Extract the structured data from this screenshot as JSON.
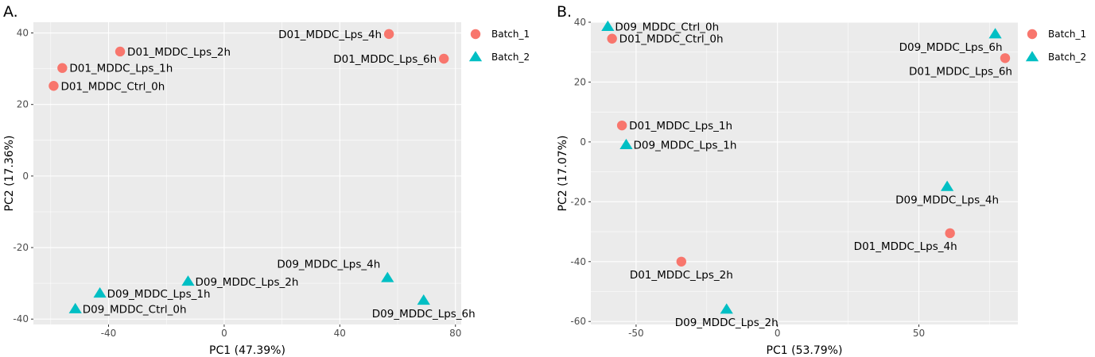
{
  "colors": {
    "batch_1": "#F8766D",
    "batch_2": "#00BFC4",
    "panel_bg": "#EBEBEB",
    "grid": "#FFFFFF"
  },
  "chart_data": [
    {
      "type": "scatter",
      "panel_label": "A.",
      "xlabel": "PC1 (47.39%)",
      "ylabel": "PC2 (17.36%)",
      "xlim": [
        -66,
        82
      ],
      "ylim": [
        -41.5,
        43
      ],
      "xticks": [
        -40,
        0,
        40,
        80
      ],
      "yticks": [
        -40,
        -20,
        0,
        20,
        40
      ],
      "xtick_labels": [
        "-40",
        "0",
        "40",
        "80"
      ],
      "ytick_labels": [
        "-40",
        "-20",
        "0",
        "20",
        "40"
      ],
      "legend": [
        "Batch_1",
        "Batch_2"
      ],
      "legend_position": "right",
      "grid": true,
      "series": [
        {
          "name": "Batch_1",
          "marker": "circle",
          "points": [
            {
              "label": "D01_MDDC_Lps_4h",
              "x": 57,
              "y": 39.7,
              "label_pos": "left"
            },
            {
              "label": "D01_MDDC_Lps_2h",
              "x": -36,
              "y": 34.8,
              "label_pos": "right"
            },
            {
              "label": "D01_MDDC_Lps_6h",
              "x": 76,
              "y": 32.8,
              "label_pos": "left"
            },
            {
              "label": "D01_MDDC_Lps_1h",
              "x": -56,
              "y": 30.2,
              "label_pos": "right"
            },
            {
              "label": "D01_MDDC_Ctrl_0h",
              "x": -59,
              "y": 25.2,
              "label_pos": "right"
            }
          ]
        },
        {
          "name": "Batch_2",
          "marker": "triangle",
          "points": [
            {
              "label": "D09_MDDC_Lps_4h",
              "x": 56.5,
              "y": -28.5,
              "label_pos": "above"
            },
            {
              "label": "D09_MDDC_Lps_2h",
              "x": -12.5,
              "y": -29.5,
              "label_pos": "right"
            },
            {
              "label": "D09_MDDC_Lps_1h",
              "x": -43,
              "y": -32.8,
              "label_pos": "right"
            },
            {
              "label": "D09_MDDC_Lps_6h",
              "x": 69,
              "y": -34.8,
              "label_pos": "below"
            },
            {
              "label": "D09_MDDC_Ctrl_0h",
              "x": -51.5,
              "y": -37.2,
              "label_pos": "right"
            }
          ]
        }
      ]
    },
    {
      "type": "scatter",
      "panel_label": "B.",
      "xlabel": "PC1 (53.79%)",
      "ylabel": "PC2 (17.07%)",
      "xlim": [
        -66,
        85
      ],
      "ylim": [
        -61,
        40
      ],
      "xticks": [
        -50,
        0,
        50
      ],
      "yticks": [
        -60,
        -40,
        -20,
        0,
        20,
        40
      ],
      "xtick_labels": [
        "-50",
        "0",
        "50"
      ],
      "ytick_labels": [
        "-60",
        "-40",
        "-20",
        "0",
        "20",
        "40"
      ],
      "legend": [
        "Batch_1",
        "Batch_2"
      ],
      "legend_position": "right",
      "grid": true,
      "series": [
        {
          "name": "Batch_1",
          "marker": "circle",
          "points": [
            {
              "label": "D01_MDDC_Ctrl_0h",
              "x": -58.5,
              "y": 34.5,
              "label_pos": "right"
            },
            {
              "label": "D01_MDDC_Lps_6h",
              "x": 80.5,
              "y": 28,
              "label_pos": "below-left"
            },
            {
              "label": "D01_MDDC_Lps_1h",
              "x": -55,
              "y": 5.5,
              "label_pos": "right"
            },
            {
              "label": "D01_MDDC_Lps_4h",
              "x": 61,
              "y": -30.5,
              "label_pos": "below-left"
            },
            {
              "label": "D01_MDDC_Lps_2h",
              "x": -34,
              "y": -40,
              "label_pos": "below"
            }
          ]
        },
        {
          "name": "Batch_2",
          "marker": "triangle",
          "points": [
            {
              "label": "D09_MDDC_Ctrl_0h",
              "x": -60,
              "y": 38.5,
              "label_pos": "right"
            },
            {
              "label": "D09_MDDC_Lps_6h",
              "x": 77,
              "y": 36,
              "label_pos": "below-left"
            },
            {
              "label": "D09_MDDC_Lps_1h",
              "x": -53.5,
              "y": -1,
              "label_pos": "right"
            },
            {
              "label": "D09_MDDC_Lps_4h",
              "x": 60,
              "y": -15,
              "label_pos": "below"
            },
            {
              "label": "D09_MDDC_Lps_2h",
              "x": -18,
              "y": -56,
              "label_pos": "below"
            }
          ]
        }
      ]
    }
  ]
}
